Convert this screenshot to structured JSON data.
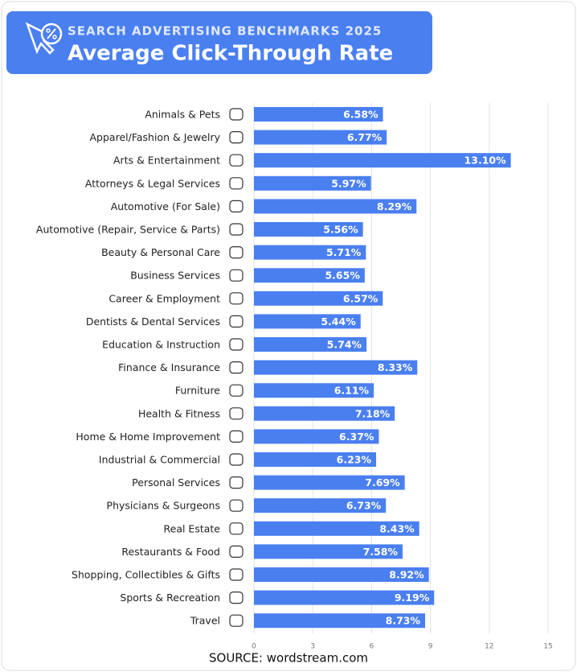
{
  "chart_data": {
    "type": "bar",
    "orientation": "horizontal",
    "subtitle": "SEARCH ADVERTISING BENCHMARKS 2025",
    "title": "Average Click-Through Rate",
    "source": "SOURCE: wordstream.com",
    "categories": [
      "Animals & Pets",
      "Apparel/Fashion & Jewelry",
      "Arts & Entertainment",
      "Attorneys & Legal Services",
      "Automotive (For Sale)",
      "Automotive (Repair, Service & Parts)",
      "Beauty & Personal Care",
      "Business Services",
      "Career & Employment",
      "Dentists & Dental Services",
      "Education & Instruction",
      "Finance & Insurance",
      "Furniture",
      "Health & Fitness",
      "Home & Home Improvement",
      "Industrial & Commercial",
      "Personal Services",
      "Physicians & Surgeons",
      "Real Estate",
      "Restaurants & Food",
      "Shopping, Collectibles & Gifts",
      "Sports & Recreation",
      "Travel"
    ],
    "values": [
      6.58,
      6.77,
      13.1,
      5.97,
      8.29,
      5.56,
      5.71,
      5.65,
      6.57,
      5.44,
      5.74,
      8.33,
      6.11,
      7.18,
      6.37,
      6.23,
      7.69,
      6.73,
      8.43,
      7.58,
      8.92,
      9.19,
      8.73
    ],
    "value_labels": [
      "6.58%",
      "6.77%",
      "13.10%",
      "5.97%",
      "8.29%",
      "5.56%",
      "5.71%",
      "5.65%",
      "6.57%",
      "5.44%",
      "5.74%",
      "8.33%",
      "6.11%",
      "7.18%",
      "6.37%",
      "6.23%",
      "7.69%",
      "6.73%",
      "8.43%",
      "7.58%",
      "8.92%",
      "9.19%",
      "8.73%"
    ],
    "color": "#4a7ff0",
    "xlim": [
      0,
      15
    ],
    "xticks": [
      0,
      3,
      6,
      9,
      12,
      15
    ],
    "grid": true
  }
}
